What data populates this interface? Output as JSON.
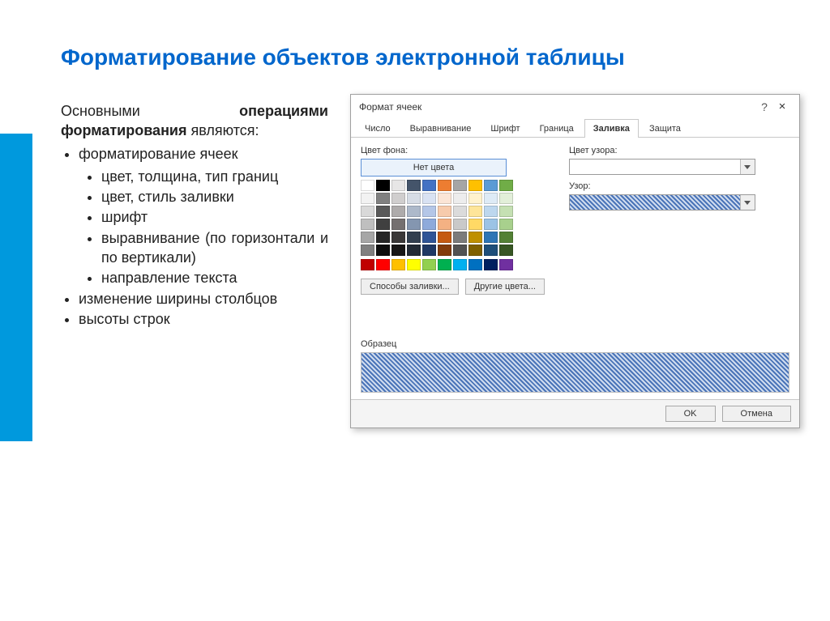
{
  "slide": {
    "title": "Форматирование объектов электронной таблицы",
    "intro_prefix": "Основными",
    "intro_bold": "операциями форматирования",
    "intro_suffix": " являются:",
    "bullets": {
      "b1": "форматирование ячеек",
      "b1_sub": {
        "s1": "цвет, толщина, тип границ",
        "s2": "цвет, стиль заливки",
        "s3": "шрифт",
        "s4": "выравнивание (по горизонтали и по вертикали)",
        "s5": "направление текста"
      },
      "b2": "изменение ширины столбцов",
      "b3": "высоты строк"
    },
    "accent_color": "#0099dd"
  },
  "dialog": {
    "title": "Формат ячеек",
    "tabs": {
      "t1": "Число",
      "t2": "Выравнивание",
      "t3": "Шрифт",
      "t4": "Граница",
      "t5": "Заливка",
      "t6": "Защита"
    },
    "active_tab": "t5",
    "labels": {
      "bg": "Цвет фона:",
      "nocolor": "Нет цвета",
      "fill_methods": "Способы заливки...",
      "other_colors": "Другие цвета...",
      "pattern_color": "Цвет узора:",
      "pattern": "Узор:",
      "sample": "Образец"
    },
    "buttons": {
      "ok": "OK",
      "cancel": "Отмена"
    },
    "theme_colors": [
      [
        "#ffffff",
        "#000000",
        "#e7e6e6",
        "#44546a",
        "#4472c4",
        "#ed7d31",
        "#a5a5a5",
        "#ffc000",
        "#5b9bd5",
        "#70ad47"
      ],
      [
        "#f2f2f2",
        "#808080",
        "#d0cece",
        "#d6dce5",
        "#d9e2f3",
        "#fbe5d6",
        "#ededed",
        "#fff2cc",
        "#deebf6",
        "#e2efd9"
      ],
      [
        "#d9d9d9",
        "#595959",
        "#aeabab",
        "#adb9ca",
        "#b4c6e7",
        "#f7cbac",
        "#dbdbdb",
        "#fee599",
        "#bdd7ee",
        "#c5e0b3"
      ],
      [
        "#bfbfbf",
        "#404040",
        "#757070",
        "#8496b0",
        "#8eaadb",
        "#f4b183",
        "#c9c9c9",
        "#ffd965",
        "#9cc3e5",
        "#a8d08d"
      ],
      [
        "#a6a6a6",
        "#262626",
        "#3a3838",
        "#323f4f",
        "#2f5496",
        "#c55a11",
        "#7b7b7b",
        "#bf9000",
        "#2e75b5",
        "#538135"
      ],
      [
        "#808080",
        "#0d0d0d",
        "#171616",
        "#222a35",
        "#1f3864",
        "#833c0b",
        "#525252",
        "#7f6000",
        "#1e4e79",
        "#375623"
      ]
    ],
    "standard_colors": [
      "#c00000",
      "#ff0000",
      "#ffc000",
      "#ffff00",
      "#92d050",
      "#00b050",
      "#00b0f0",
      "#0070c0",
      "#002060",
      "#7030a0"
    ],
    "pattern_color_hex": "#4a74b8",
    "border_color": "#a0a0a0"
  }
}
